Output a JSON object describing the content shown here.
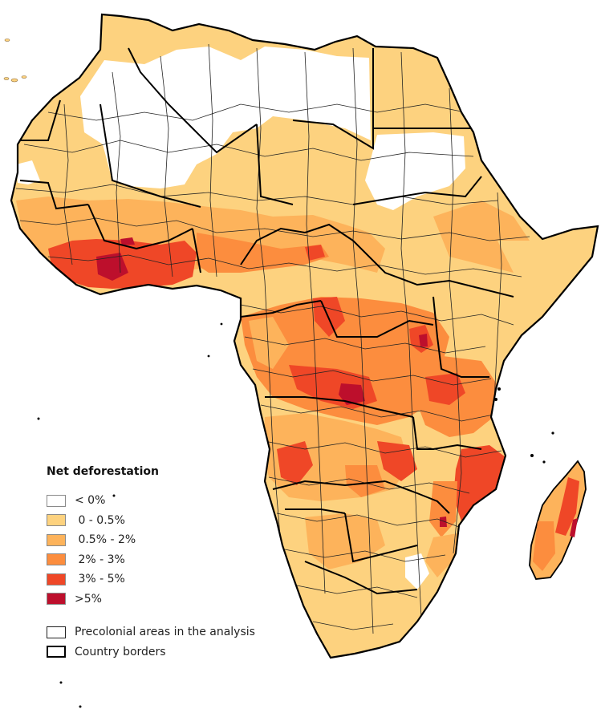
{
  "legend": {
    "title": "Net deforestation",
    "classes": [
      {
        "label": "< 0%",
        "color": "#ffffff",
        "icon": "swatch-negative"
      },
      {
        "label": " 0 - 0.5%",
        "color": "#fdd27f",
        "icon": "swatch-0-0.5"
      },
      {
        "label": " 0.5% - 2%",
        "color": "#fdb35b",
        "icon": "swatch-0.5-2"
      },
      {
        "label": " 2% - 3%",
        "color": "#fc8d3e",
        "icon": "swatch-2-3"
      },
      {
        "label": " 3% - 5%",
        "color": "#ef4727",
        "icon": "swatch-3-5"
      },
      {
        "label": ">5%",
        "color": "#bd0f2c",
        "icon": "swatch-gt-5"
      }
    ],
    "symbols": [
      {
        "label": "Precolonial areas in the analysis",
        "icon": "thin-outline-box"
      },
      {
        "label": "Country borders",
        "icon": "thick-outline-box"
      }
    ]
  },
  "map": {
    "subject": "Africa",
    "colors": {
      "none": "#ffffff",
      "low": "#fdd27f",
      "mid": "#fdb35b",
      "high": "#fc8d3e",
      "very_high": "#ef4727",
      "extreme": "#bd0f2c",
      "precolonial_border": "#222222",
      "country_border": "#000000"
    }
  }
}
